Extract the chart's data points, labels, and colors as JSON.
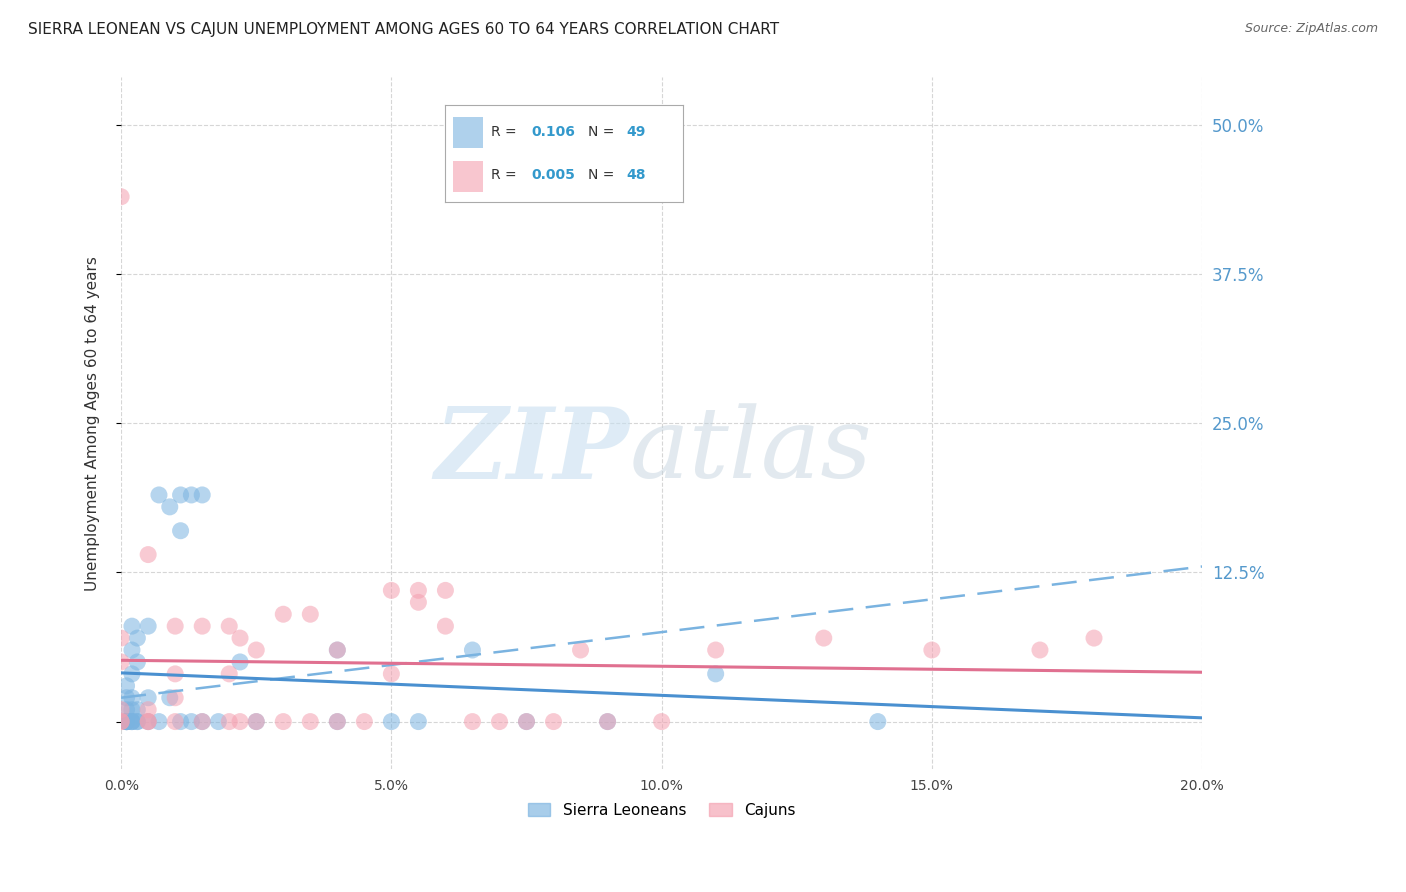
{
  "title": "SIERRA LEONEAN VS CAJUN UNEMPLOYMENT AMONG AGES 60 TO 64 YEARS CORRELATION CHART",
  "source": "Source: ZipAtlas.com",
  "ylabel": "Unemployment Among Ages 60 to 64 years",
  "xlim": [
    0.0,
    0.2
  ],
  "ylim": [
    -0.04,
    0.54
  ],
  "yticks_right": [
    0.0,
    0.125,
    0.25,
    0.375,
    0.5
  ],
  "ytick_right_labels": [
    "",
    "12.5%",
    "25.0%",
    "37.5%",
    "50.0%"
  ],
  "xticks": [
    0.0,
    0.05,
    0.1,
    0.15,
    0.2
  ],
  "xtick_labels": [
    "0.0%",
    "5.0%",
    "10.0%",
    "15.0%",
    "20.0%"
  ],
  "sierra_x": [
    0.001,
    0.001,
    0.001,
    0.001,
    0.001,
    0.001,
    0.001,
    0.001,
    0.001,
    0.001,
    0.002,
    0.002,
    0.002,
    0.002,
    0.002,
    0.002,
    0.002,
    0.002,
    0.003,
    0.003,
    0.003,
    0.003,
    0.003,
    0.005,
    0.005,
    0.005,
    0.007,
    0.007,
    0.009,
    0.009,
    0.011,
    0.011,
    0.011,
    0.013,
    0.013,
    0.015,
    0.015,
    0.018,
    0.022,
    0.025,
    0.04,
    0.04,
    0.05,
    0.055,
    0.065,
    0.075,
    0.09,
    0.11,
    0.14
  ],
  "sierra_y": [
    0.0,
    0.0,
    0.0,
    0.0,
    0.0,
    0.0,
    0.0,
    0.01,
    0.02,
    0.03,
    0.0,
    0.0,
    0.0,
    0.01,
    0.02,
    0.04,
    0.06,
    0.08,
    0.0,
    0.0,
    0.01,
    0.05,
    0.07,
    0.0,
    0.02,
    0.08,
    0.0,
    0.19,
    0.02,
    0.18,
    0.0,
    0.16,
    0.19,
    0.0,
    0.19,
    0.0,
    0.19,
    0.0,
    0.05,
    0.0,
    0.0,
    0.06,
    0.0,
    0.0,
    0.06,
    0.0,
    0.0,
    0.04,
    0.0
  ],
  "cajun_x": [
    0.0,
    0.0,
    0.0,
    0.0,
    0.0,
    0.0,
    0.005,
    0.005,
    0.005,
    0.005,
    0.01,
    0.01,
    0.01,
    0.01,
    0.015,
    0.015,
    0.02,
    0.02,
    0.02,
    0.022,
    0.022,
    0.025,
    0.025,
    0.03,
    0.03,
    0.035,
    0.035,
    0.04,
    0.04,
    0.045,
    0.05,
    0.05,
    0.055,
    0.055,
    0.06,
    0.06,
    0.065,
    0.07,
    0.075,
    0.08,
    0.085,
    0.09,
    0.1,
    0.11,
    0.13,
    0.15,
    0.17,
    0.18
  ],
  "cajun_y": [
    0.0,
    0.0,
    0.01,
    0.05,
    0.07,
    0.44,
    0.0,
    0.0,
    0.01,
    0.14,
    0.0,
    0.02,
    0.04,
    0.08,
    0.0,
    0.08,
    0.0,
    0.04,
    0.08,
    0.0,
    0.07,
    0.0,
    0.06,
    0.0,
    0.09,
    0.0,
    0.09,
    0.0,
    0.06,
    0.0,
    0.04,
    0.11,
    0.1,
    0.11,
    0.08,
    0.11,
    0.0,
    0.0,
    0.0,
    0.0,
    0.06,
    0.0,
    0.0,
    0.06,
    0.07,
    0.06,
    0.06,
    0.07
  ],
  "sierra_color": "#7ab3e0",
  "cajun_color": "#f4a0b0",
  "blue_line_color": "#4a90d0",
  "blue_dash_color": "#7ab3e0",
  "pink_line_color": "#e07090",
  "background_color": "#ffffff",
  "grid_color": "#cccccc",
  "title_fontsize": 11,
  "axis_label_fontsize": 11,
  "tick_fontsize": 10
}
